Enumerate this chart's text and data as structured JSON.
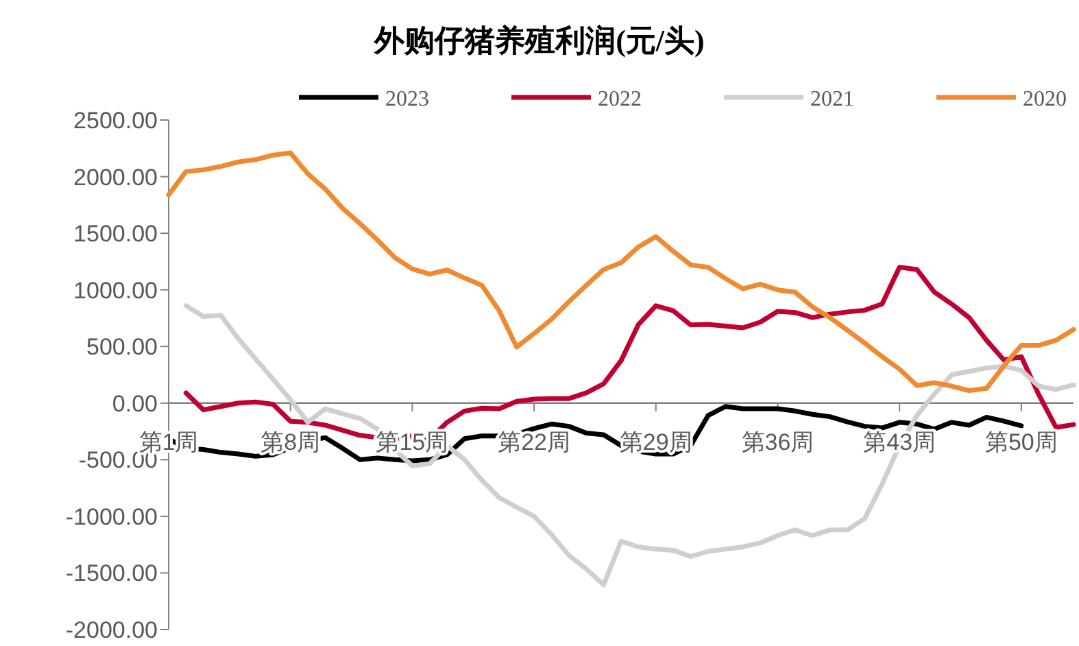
{
  "chart_data": {
    "type": "line",
    "title": "外购仔猪养殖利润(元/头)",
    "categories": [
      "第1周",
      null,
      null,
      null,
      null,
      null,
      null,
      "第8周",
      null,
      null,
      null,
      null,
      null,
      null,
      "第15周",
      null,
      null,
      null,
      null,
      null,
      null,
      "第22周",
      null,
      null,
      null,
      null,
      null,
      null,
      "第29周",
      null,
      null,
      null,
      null,
      null,
      null,
      "第36周",
      null,
      null,
      null,
      null,
      null,
      null,
      "第43周",
      null,
      null,
      null,
      null,
      null,
      null,
      "第50周",
      null,
      null,
      null
    ],
    "ylim": [
      -2000,
      2500
    ],
    "yticks": [
      {
        "value": -2000,
        "label": "-2000.00"
      },
      {
        "value": -1500,
        "label": "-1500.00"
      },
      {
        "value": -1000,
        "label": "-1000.00"
      },
      {
        "value": -500,
        "label": "-500.00"
      },
      {
        "value": 0,
        "label": "0.00"
      },
      {
        "value": 500,
        "label": "500.00"
      },
      {
        "value": 1000,
        "label": "1000.00"
      },
      {
        "value": 1500,
        "label": "1500.00"
      },
      {
        "value": 2000,
        "label": "2000.00"
      },
      {
        "value": 2500,
        "label": "2500.00"
      }
    ],
    "grid": false,
    "legend": "top",
    "marker": "none",
    "line_style": "solid",
    "series": [
      {
        "name": "2023",
        "color": "#000000",
        "values": [
          -315,
          -400,
          -410,
          -435,
          -450,
          -470,
          -455,
          -395,
          -335,
          -305,
          -400,
          -500,
          -485,
          -500,
          -510,
          -500,
          -455,
          -315,
          -290,
          -290,
          -275,
          -225,
          -185,
          -205,
          -265,
          -280,
          -375,
          -425,
          -450,
          -450,
          -375,
          -110,
          -30,
          -50,
          -50,
          -50,
          -70,
          -100,
          -120,
          -165,
          -205,
          -220,
          -170,
          -185,
          -230,
          -170,
          -195,
          -125,
          -160,
          -200,
          null,
          null,
          null
        ]
      },
      {
        "name": "2022",
        "color": "#c00030",
        "values": [
          null,
          90,
          -60,
          -30,
          0,
          10,
          -10,
          -160,
          -170,
          -195,
          -240,
          -285,
          -305,
          -315,
          -290,
          -320,
          -170,
          -70,
          -45,
          -50,
          15,
          35,
          40,
          40,
          90,
          170,
          375,
          695,
          860,
          815,
          690,
          695,
          680,
          665,
          715,
          810,
          800,
          755,
          785,
          805,
          820,
          875,
          1200,
          1180,
          980,
          875,
          755,
          555,
          380,
          410,
          75,
          -215,
          -190
        ]
      },
      {
        "name": "2021",
        "color": "#d0cece",
        "values": [
          null,
          860,
          765,
          775,
          570,
          390,
          210,
          30,
          -170,
          -50,
          -95,
          -135,
          -230,
          -410,
          -555,
          -535,
          -375,
          -500,
          -680,
          -835,
          -920,
          -1000,
          -1160,
          -1345,
          -1465,
          -1605,
          -1220,
          -1270,
          -1290,
          -1300,
          -1355,
          -1310,
          -1290,
          -1270,
          -1235,
          -1170,
          -1120,
          -1170,
          -1120,
          -1120,
          -1020,
          -715,
          -375,
          -110,
          80,
          250,
          280,
          310,
          325,
          290,
          150,
          120,
          160
        ]
      },
      {
        "name": "2020",
        "color": "#f08a30",
        "values": [
          1840,
          2045,
          2060,
          2090,
          2130,
          2150,
          2190,
          2210,
          2025,
          1890,
          1720,
          1585,
          1440,
          1285,
          1185,
          1140,
          1175,
          1105,
          1040,
          815,
          495,
          615,
          740,
          895,
          1040,
          1180,
          1240,
          1380,
          1470,
          1340,
          1220,
          1200,
          1100,
          1010,
          1050,
          1000,
          980,
          850,
          755,
          645,
          530,
          410,
          300,
          155,
          180,
          150,
          110,
          130,
          330,
          510,
          510,
          555,
          650
        ]
      }
    ]
  }
}
